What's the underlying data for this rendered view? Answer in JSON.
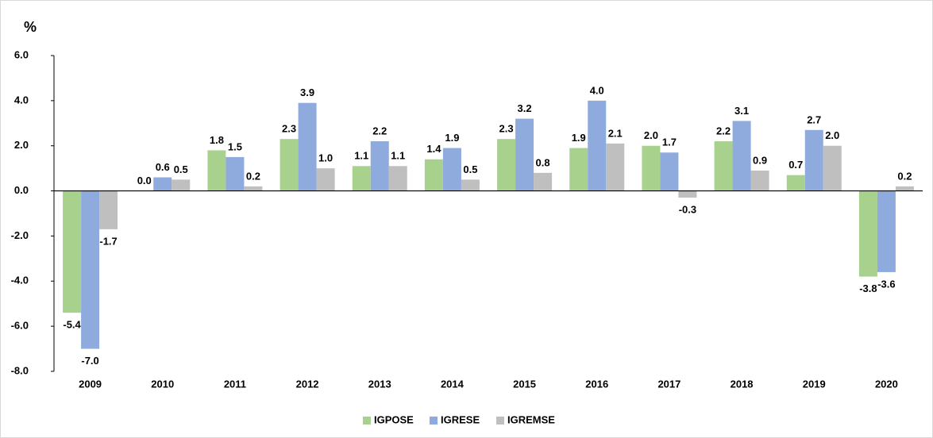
{
  "chart_data": {
    "type": "bar",
    "y_label": "%",
    "categories": [
      "2009",
      "2010",
      "2011",
      "2012",
      "2013",
      "2014",
      "2015",
      "2016",
      "2017",
      "2018",
      "2019",
      "2020"
    ],
    "series": [
      {
        "name": "IGPOSE",
        "color": "#a9d18e",
        "values": [
          -5.4,
          0.0,
          1.8,
          2.3,
          1.1,
          1.4,
          2.3,
          1.9,
          2.0,
          2.2,
          0.7,
          -3.8
        ],
        "value_labels": [
          "-5.4",
          "0.0",
          "1.8",
          "2.3",
          "1.1",
          "1.4",
          "2.3",
          "1.9",
          "2.0",
          "2.2",
          "0.7",
          "-3.8"
        ]
      },
      {
        "name": "IGRESE",
        "color": "#8faadc",
        "values": [
          -7.0,
          0.6,
          1.5,
          3.9,
          2.2,
          1.9,
          3.2,
          4.0,
          1.7,
          3.1,
          2.7,
          -3.6
        ],
        "value_labels": [
          "-7.0",
          "0.6",
          "1.5",
          "3.9",
          "2.2",
          "1.9",
          "3.2",
          "4.0",
          "1.7",
          "3.1",
          "2.7",
          "-3.6"
        ]
      },
      {
        "name": "IGREMSE",
        "color": "#bfbfbf",
        "values": [
          -1.7,
          0.5,
          0.2,
          1.0,
          1.1,
          0.5,
          0.8,
          2.1,
          -0.3,
          0.9,
          2.0,
          0.2
        ],
        "value_labels": [
          "-1.7",
          "0.5",
          "0.2",
          "1.0",
          "1.1",
          "0.5",
          "0.8",
          "2.1",
          "-0.3",
          "0.9",
          "2.0",
          "0.2"
        ]
      }
    ],
    "ylim": [
      -8,
      6
    ],
    "yticks": [
      {
        "value": -8,
        "label": "-8.0"
      },
      {
        "value": -6,
        "label": "-6.0"
      },
      {
        "value": -4,
        "label": "-4.0"
      },
      {
        "value": -2,
        "label": "-2.0"
      },
      {
        "value": 0,
        "label": "0.0"
      },
      {
        "value": 2,
        "label": "2.0"
      },
      {
        "value": 4,
        "label": "4.0"
      },
      {
        "value": 6,
        "label": "6.0"
      }
    ],
    "grid": false,
    "legend": "bottom"
  }
}
